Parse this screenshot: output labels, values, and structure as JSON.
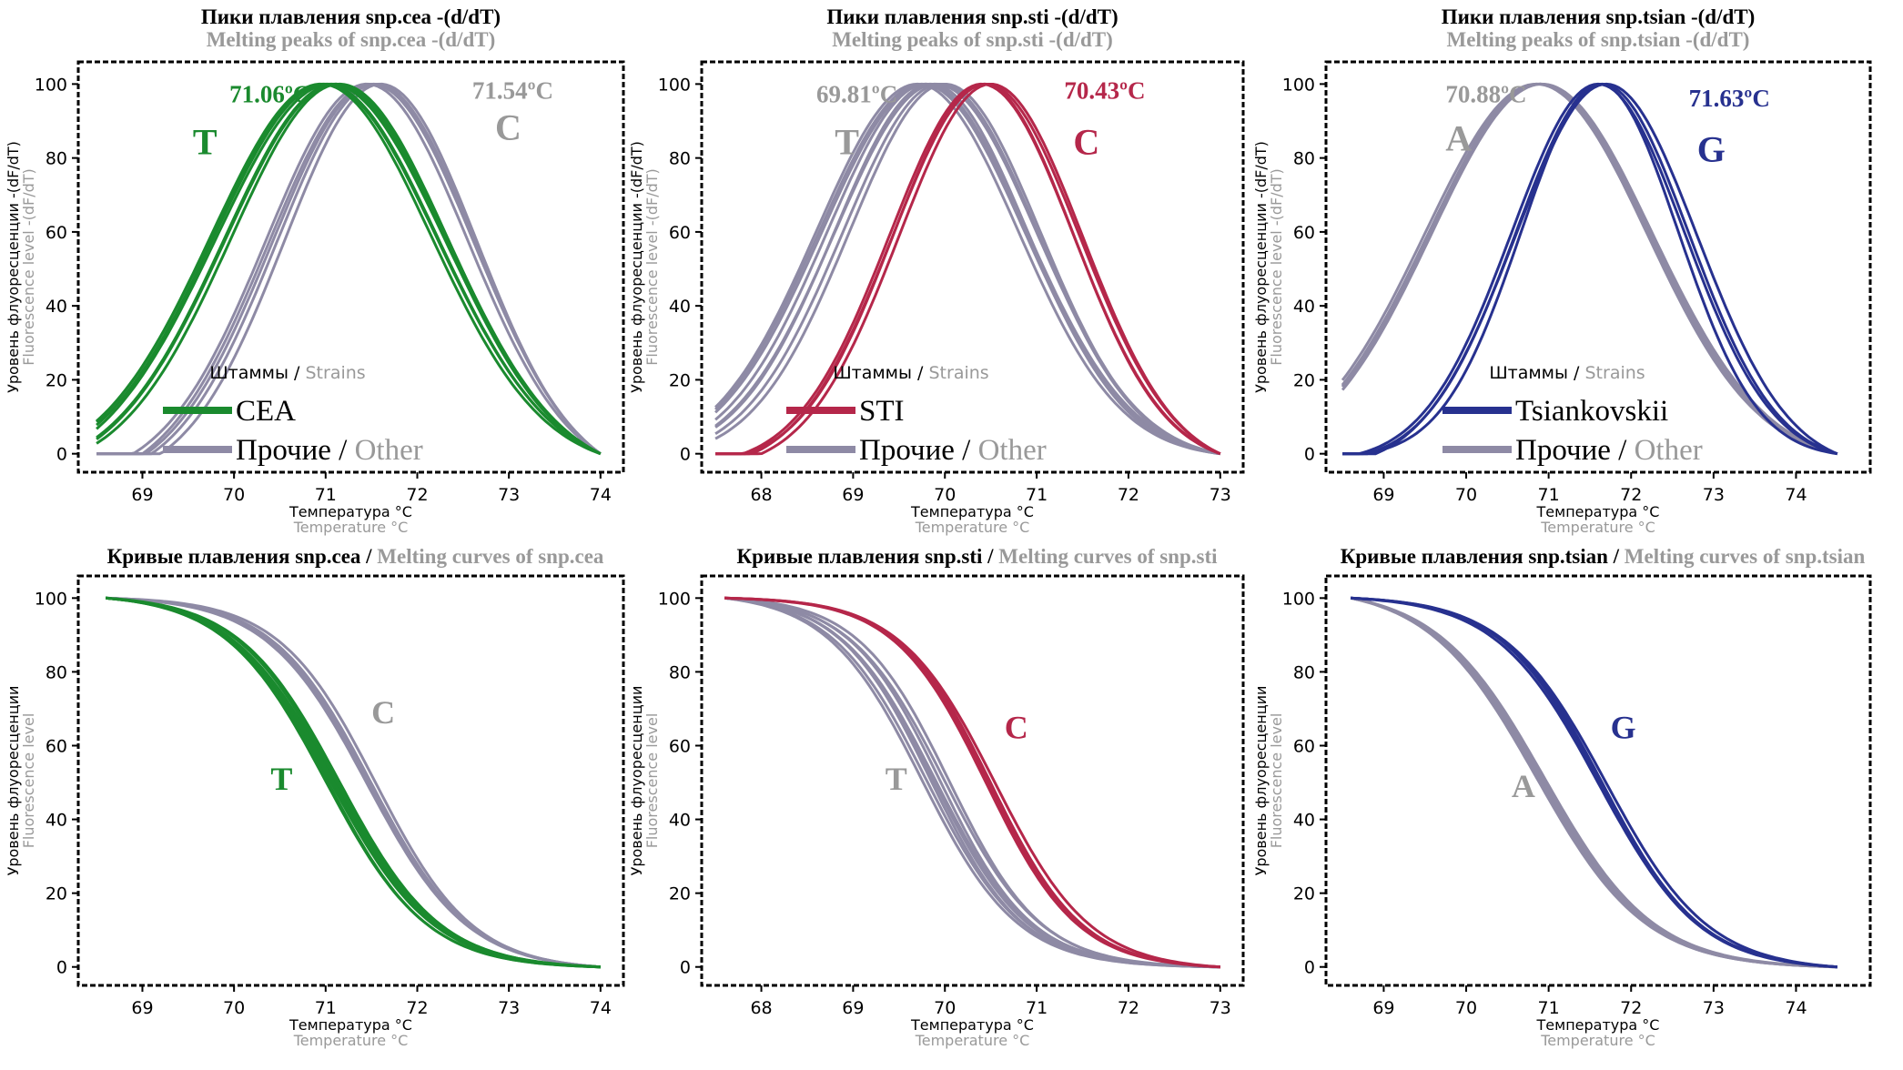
{
  "colors": {
    "cea": "#1a8a2e",
    "sti": "#b5274a",
    "tsian": "#27318f",
    "other": "#8e8aa5",
    "gray_text": "#999999",
    "black": "#000000"
  },
  "chart_data": [
    {
      "id": "peaks-cea",
      "type": "line",
      "kind": "peak",
      "title_ru": "Пики плавления snp.cea -(d/dT)",
      "title_en": "Melting peaks of snp.cea -(d/dT)",
      "ylabel_ru": "Уровень флуоресценции -(dF/dT)",
      "ylabel_en": "Fluorescence level -(dF/dT)",
      "xlabel_ru": "Температура °C",
      "xlabel_en": "Temperature °C",
      "xlim": [
        68.3,
        74.25
      ],
      "ylim": [
        -5,
        106
      ],
      "x_ticks": [
        69,
        70,
        71,
        72,
        73,
        74
      ],
      "y_ticks": [
        0,
        20,
        40,
        60,
        80,
        100
      ],
      "x_range": [
        68.5,
        74.0
      ],
      "grid": false,
      "legend": {
        "position": "bottom-center",
        "title_ru": "Штаммы",
        "title_en": "Strains",
        "strain_label": "CEA",
        "other_ru": "Прочие",
        "other_en": "Other"
      },
      "series": [
        {
          "name": "CEA",
          "color_key": "cea",
          "allele": "T",
          "tm_label": "71.06ºC",
          "tm": 71.06,
          "peak_x": [
            70.95,
            71.0,
            71.05,
            71.1,
            71.15,
            70.98,
            71.12
          ],
          "width": [
            1.2,
            1.22,
            1.25,
            1.2,
            1.18,
            1.23,
            1.21
          ]
        },
        {
          "name": "Other",
          "color_key": "other",
          "allele": "C",
          "tm_label": "71.54ºC",
          "tm": 71.54,
          "peak_x": [
            71.45,
            71.5,
            71.55,
            71.6,
            71.52
          ],
          "width": [
            1.1,
            1.12,
            1.08,
            1.05,
            1.1
          ]
        }
      ],
      "annotations": [
        {
          "text": "71.06ºC",
          "x": 69.95,
          "y": 95,
          "color_key": "cea",
          "size": "md"
        },
        {
          "text": "T",
          "x": 69.55,
          "y": 81,
          "color_key": "cea",
          "size": "lg"
        },
        {
          "text": "71.54ºC",
          "x": 72.6,
          "y": 96,
          "color_key": "gray_text",
          "size": "md"
        },
        {
          "text": "C",
          "x": 72.85,
          "y": 85,
          "color_key": "gray_text",
          "size": "lg"
        }
      ]
    },
    {
      "id": "peaks-sti",
      "type": "line",
      "kind": "peak",
      "title_ru": "Пики плавления snp.sti -(d/dT)",
      "title_en": "Melting peaks of snp.sti -(d/dT)",
      "ylabel_ru": "Уровень флуоресценции -(dF/dT)",
      "ylabel_en": "Fluorescence level -(dF/dT)",
      "xlabel_ru": "Температура °C",
      "xlabel_en": "Temperature °C",
      "xlim": [
        67.35,
        73.25
      ],
      "ylim": [
        -5,
        106
      ],
      "x_ticks": [
        68,
        69,
        70,
        71,
        72,
        73
      ],
      "y_ticks": [
        0,
        20,
        40,
        60,
        80,
        100
      ],
      "x_range": [
        67.5,
        73.0
      ],
      "grid": false,
      "legend": {
        "position": "bottom-center",
        "title_ru": "Штаммы",
        "title_en": "Strains",
        "strain_label": "STI",
        "other_ru": "Прочие",
        "other_en": "Other"
      },
      "series": [
        {
          "name": "STI",
          "color_key": "sti",
          "allele": "C",
          "tm_label": "70.43ºC",
          "tm": 70.43,
          "peak_x": [
            70.4,
            70.45,
            70.5,
            70.42
          ],
          "width": [
            1.0,
            1.02,
            1.0,
            0.98
          ]
        },
        {
          "name": "Other",
          "color_key": "other",
          "allele": "T",
          "tm_label": "69.81ºC",
          "tm": 69.81,
          "peak_x": [
            69.7,
            69.75,
            69.8,
            69.85,
            69.9,
            69.95,
            70.0,
            69.78
          ],
          "width": [
            1.1,
            1.12,
            1.08,
            1.05,
            1.1,
            1.06,
            1.04,
            1.12
          ]
        }
      ],
      "annotations": [
        {
          "text": "69.81ºC",
          "x": 68.6,
          "y": 95,
          "color_key": "gray_text",
          "size": "md"
        },
        {
          "text": "T",
          "x": 68.8,
          "y": 81,
          "color_key": "gray_text",
          "size": "lg"
        },
        {
          "text": "70.43ºC",
          "x": 71.3,
          "y": 96,
          "color_key": "sti",
          "size": "md"
        },
        {
          "text": "C",
          "x": 71.4,
          "y": 81,
          "color_key": "sti",
          "size": "lg"
        }
      ]
    },
    {
      "id": "peaks-tsian",
      "type": "line",
      "kind": "peak",
      "title_ru": "Пики плавления snp.tsian -(d/dT)",
      "title_en": "Melting peaks of snp.tsian -(d/dT)",
      "ylabel_ru": "Уровень флуоресценции -(dF/dT)",
      "ylabel_en": "Fluorescence level -(dF/dT)",
      "xlabel_ru": "Температура °C",
      "xlabel_en": "Temperature °C",
      "xlim": [
        68.3,
        74.9
      ],
      "ylim": [
        -5,
        106
      ],
      "x_ticks": [
        69,
        70,
        71,
        72,
        73,
        74
      ],
      "y_ticks": [
        0,
        20,
        40,
        60,
        80,
        100
      ],
      "x_range": [
        68.5,
        74.5
      ],
      "grid": false,
      "legend": {
        "position": "bottom-center",
        "title_ru": "Штаммы",
        "title_en": "Strains",
        "strain_label": "Tsiankovskii",
        "other_ru": "Прочие",
        "other_en": "Other"
      },
      "series": [
        {
          "name": "Tsiankovskii",
          "color_key": "tsian",
          "allele": "G",
          "tm_label": "71.63ºC",
          "tm": 71.63,
          "peak_x": [
            71.6,
            71.65,
            71.7,
            71.62
          ],
          "width": [
            1.05,
            1.05,
            1.1,
            0.95
          ]
        },
        {
          "name": "Other",
          "color_key": "other",
          "allele": "A",
          "tm_label": "70.88ºC",
          "tm": 70.88,
          "peak_x": [
            70.85,
            70.88,
            70.9,
            70.92,
            70.87,
            70.89
          ],
          "width": [
            1.35,
            1.33,
            1.36,
            1.34,
            1.32,
            1.35
          ]
        }
      ],
      "annotations": [
        {
          "text": "70.88ºC",
          "x": 69.75,
          "y": 95,
          "color_key": "gray_text",
          "size": "md"
        },
        {
          "text": "A",
          "x": 69.75,
          "y": 82,
          "color_key": "gray_text",
          "size": "lg"
        },
        {
          "text": "71.63ºC",
          "x": 72.7,
          "y": 94,
          "color_key": "tsian",
          "size": "md"
        },
        {
          "text": "G",
          "x": 72.8,
          "y": 79,
          "color_key": "tsian",
          "size": "lg"
        }
      ]
    },
    {
      "id": "curves-cea",
      "type": "line",
      "kind": "melt",
      "title_ru": "Кривые плавления snp.cea /",
      "title_en": "Melting curves of snp.cea",
      "ylabel_ru": "Уровень флуоресценции",
      "ylabel_en": "Fluorescence level",
      "xlabel_ru": "Температура °C",
      "xlabel_en": "Temperature °C",
      "xlim": [
        68.3,
        74.25
      ],
      "ylim": [
        -5,
        106
      ],
      "x_ticks": [
        69,
        70,
        71,
        72,
        73,
        74
      ],
      "y_ticks": [
        0,
        20,
        40,
        60,
        80,
        100
      ],
      "x_range": [
        68.6,
        74.0
      ],
      "grid": false,
      "series": [
        {
          "name": "CEA",
          "color_key": "cea",
          "allele": "T",
          "mid_x": [
            71.0,
            71.05,
            71.1,
            71.15,
            71.02,
            71.08,
            71.12
          ],
          "width": [
            0.55,
            0.56,
            0.57,
            0.55,
            0.54,
            0.56,
            0.55
          ]
        },
        {
          "name": "Other",
          "color_key": "other",
          "allele": "C",
          "mid_x": [
            71.45,
            71.5,
            71.55,
            71.48
          ],
          "width": [
            0.55,
            0.54,
            0.53,
            0.55
          ]
        }
      ],
      "annotations": [
        {
          "text": "C",
          "x": 71.5,
          "y": 66,
          "color_key": "gray_text",
          "size": "lg2"
        },
        {
          "text": "T",
          "x": 70.4,
          "y": 48,
          "color_key": "cea",
          "size": "lg2"
        }
      ]
    },
    {
      "id": "curves-sti",
      "type": "line",
      "kind": "melt",
      "title_ru": "Кривые плавления snp.sti /",
      "title_en": "Melting curves of snp.sti",
      "ylabel_ru": "Уровень флуоресценции",
      "ylabel_en": "Fluorescence level",
      "xlabel_ru": "Температура °C",
      "xlabel_en": "Temperature °C",
      "xlim": [
        67.35,
        73.25
      ],
      "ylim": [
        -5,
        106
      ],
      "x_ticks": [
        68,
        69,
        70,
        71,
        72,
        73
      ],
      "y_ticks": [
        0,
        20,
        40,
        60,
        80,
        100
      ],
      "x_range": [
        67.6,
        73.0
      ],
      "grid": false,
      "series": [
        {
          "name": "STI",
          "color_key": "sti",
          "allele": "C",
          "mid_x": [
            70.45,
            70.5,
            70.55,
            70.48
          ],
          "width": [
            0.5,
            0.5,
            0.52,
            0.5
          ]
        },
        {
          "name": "Other",
          "color_key": "other",
          "allele": "T",
          "mid_x": [
            69.75,
            69.8,
            69.85,
            69.9,
            69.95,
            70.0,
            70.05,
            69.88
          ],
          "width": [
            0.52,
            0.52,
            0.5,
            0.52,
            0.5,
            0.52,
            0.5,
            0.51
          ]
        }
      ],
      "annotations": [
        {
          "text": "C",
          "x": 70.65,
          "y": 62,
          "color_key": "sti",
          "size": "lg2"
        },
        {
          "text": "T",
          "x": 69.35,
          "y": 48,
          "color_key": "gray_text",
          "size": "lg2"
        }
      ]
    },
    {
      "id": "curves-tsian",
      "type": "line",
      "kind": "melt",
      "title_ru": "Кривые плавления snp.tsian /",
      "title_en": "Melting curves of snp.tsian",
      "ylabel_ru": "Уровень флуоресценции",
      "ylabel_en": "Fluorescence level",
      "xlabel_ru": "Температура °C",
      "xlabel_en": "Temperature °C",
      "xlim": [
        68.3,
        74.9
      ],
      "ylim": [
        -5,
        106
      ],
      "x_ticks": [
        69,
        70,
        71,
        72,
        73,
        74
      ],
      "y_ticks": [
        0,
        20,
        40,
        60,
        80,
        100
      ],
      "x_range": [
        68.6,
        74.5
      ],
      "grid": false,
      "series": [
        {
          "name": "Tsiankovskii",
          "color_key": "tsian",
          "allele": "G",
          "mid_x": [
            71.6,
            71.65,
            71.7,
            71.62
          ],
          "width": [
            0.62,
            0.6,
            0.62,
            0.6
          ]
        },
        {
          "name": "Other",
          "color_key": "other",
          "allele": "A",
          "mid_x": [
            70.85,
            70.9,
            70.95,
            70.88,
            70.92
          ],
          "width": [
            0.66,
            0.65,
            0.66,
            0.65,
            0.66
          ]
        }
      ],
      "annotations": [
        {
          "text": "G",
          "x": 71.75,
          "y": 62,
          "color_key": "tsian",
          "size": "lg2"
        },
        {
          "text": "A",
          "x": 70.55,
          "y": 46,
          "color_key": "gray_text",
          "size": "lg2"
        }
      ]
    }
  ]
}
